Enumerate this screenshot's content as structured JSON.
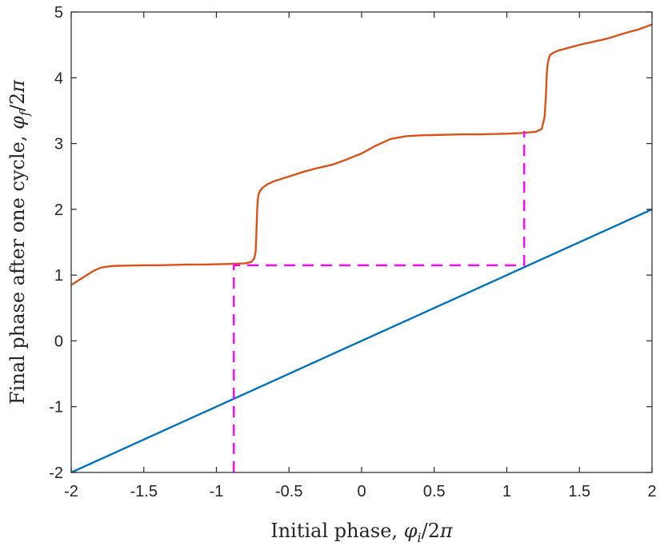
{
  "chart_data": {
    "type": "line",
    "xlabel": "Initial phase, φi/2π",
    "ylabel": "Final phase after one cycle, φf/2π",
    "xlim": [
      -2,
      2
    ],
    "ylim": [
      -2,
      5
    ],
    "x_ticks": [
      "-2",
      "-1.5",
      "-1",
      "-0.5",
      "0",
      "0.5",
      "1",
      "1.5",
      "2"
    ],
    "y_ticks": [
      "-2",
      "-1",
      "0",
      "1",
      "2",
      "3",
      "4",
      "5"
    ],
    "grid": false,
    "series": [
      {
        "color": "#D95319",
        "style": "solid",
        "x": [
          -2.0,
          -1.95,
          -1.9,
          -1.85,
          -1.8,
          -1.75,
          -1.7,
          -1.6,
          -1.5,
          -1.4,
          -1.3,
          -1.2,
          -1.1,
          -1.0,
          -0.9,
          -0.8,
          -0.76,
          -0.74,
          -0.73,
          -0.725,
          -0.72,
          -0.715,
          -0.71,
          -0.7,
          -0.68,
          -0.65,
          -0.6,
          -0.5,
          -0.4,
          -0.3,
          -0.2,
          -0.1,
          0.0,
          0.1,
          0.2,
          0.3,
          0.4,
          0.5,
          0.6,
          0.7,
          0.8,
          0.9,
          1.0,
          1.1,
          1.2,
          1.24,
          1.26,
          1.27,
          1.275,
          1.28,
          1.285,
          1.29,
          1.3,
          1.32,
          1.35,
          1.4,
          1.5,
          1.6,
          1.7,
          1.8,
          1.9,
          2.0
        ],
        "y": [
          0.85,
          0.92,
          0.99,
          1.06,
          1.11,
          1.13,
          1.14,
          1.145,
          1.15,
          1.15,
          1.155,
          1.16,
          1.16,
          1.165,
          1.17,
          1.18,
          1.2,
          1.25,
          1.35,
          1.6,
          1.95,
          2.15,
          2.22,
          2.28,
          2.33,
          2.38,
          2.43,
          2.5,
          2.57,
          2.63,
          2.68,
          2.76,
          2.85,
          2.97,
          3.07,
          3.11,
          3.125,
          3.13,
          3.135,
          3.14,
          3.14,
          3.145,
          3.15,
          3.16,
          3.18,
          3.22,
          3.4,
          3.75,
          4.05,
          4.18,
          4.25,
          4.3,
          4.35,
          4.38,
          4.41,
          4.44,
          4.5,
          4.55,
          4.6,
          4.67,
          4.73,
          4.81
        ]
      },
      {
        "color": "#0072BD",
        "style": "solid",
        "x": [
          -2,
          2
        ],
        "y": [
          -2,
          2
        ]
      },
      {
        "color": "#FF00FF",
        "style": "dashed",
        "x": [
          -0.88,
          -0.88,
          1.12,
          1.12
        ],
        "y": [
          -2,
          1.15,
          1.15,
          3.19
        ]
      }
    ]
  }
}
